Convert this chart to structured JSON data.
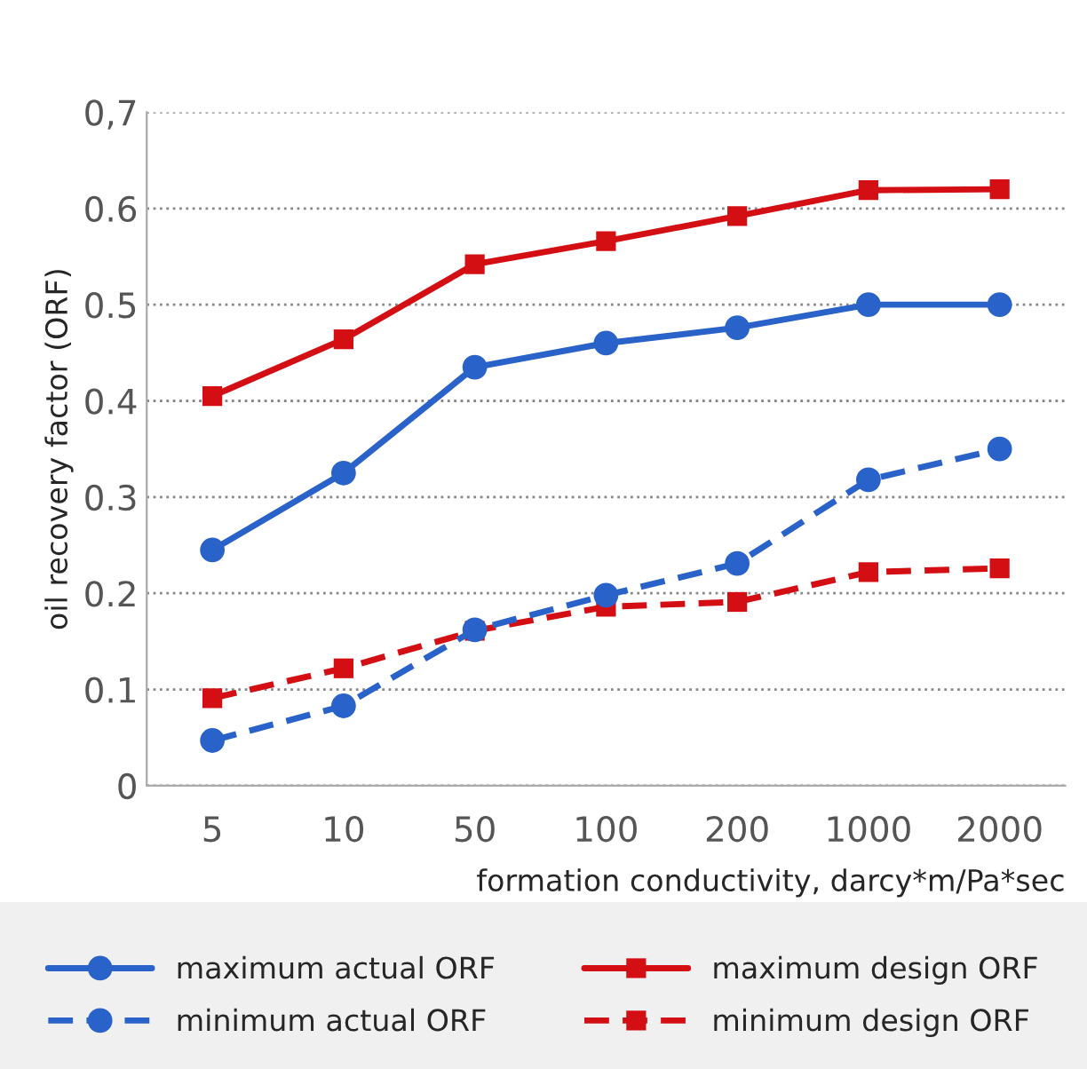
{
  "chart_data": {
    "type": "line",
    "xlabel": "formation conductivity, darcy*m/Pa*sec",
    "ylabel": "oil recovery factor (ORF)",
    "categories": [
      "5",
      "10",
      "50",
      "100",
      "200",
      "1000",
      "2000"
    ],
    "series": [
      {
        "name": "maximum actual ORF",
        "color": "#2962c8",
        "line_style": "solid",
        "marker": "circle",
        "values": [
          0.245,
          0.325,
          0.435,
          0.46,
          0.476,
          0.5,
          0.5
        ]
      },
      {
        "name": "minimum actual ORF",
        "color": "#2962c8",
        "line_style": "dashed",
        "marker": "circle",
        "values": [
          0.047,
          0.083,
          0.162,
          0.198,
          0.231,
          0.318,
          0.35
        ]
      },
      {
        "name": "maximum design ORF",
        "color": "#d40f14",
        "line_style": "solid",
        "marker": "square",
        "values": [
          0.405,
          0.464,
          0.542,
          0.566,
          0.592,
          0.619,
          0.62
        ]
      },
      {
        "name": "minimum design ORF",
        "color": "#d40f14",
        "line_style": "dashed",
        "marker": "square",
        "values": [
          0.091,
          0.122,
          0.161,
          0.186,
          0.191,
          0.222,
          0.226
        ]
      }
    ],
    "ylim": [
      0,
      0.7
    ],
    "yticks": [
      0,
      0.1,
      0.2,
      0.3,
      0.4,
      0.5,
      0.6,
      {
        "value": 0.7,
        "label": "0,7"
      }
    ],
    "grid": "y",
    "legend": "bottom"
  }
}
